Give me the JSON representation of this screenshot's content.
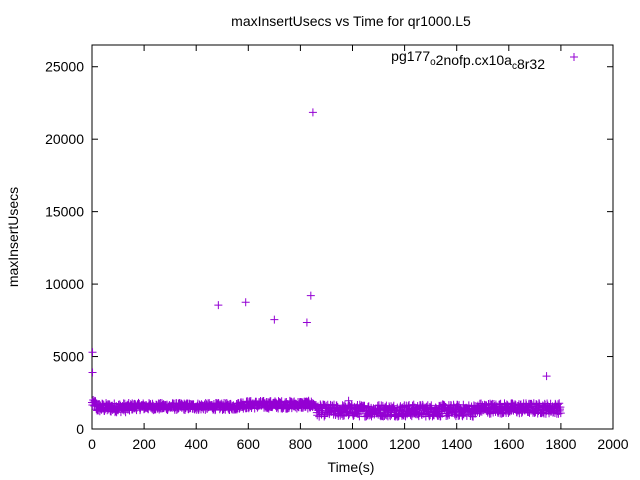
{
  "chart_data": {
    "type": "scatter",
    "title": "maxInsertUsecs vs Time for qr1000.L5",
    "xlabel": "Time(s)",
    "ylabel": "maxInsertUsecs",
    "xlim": [
      0,
      2000
    ],
    "ylim": [
      0,
      26500
    ],
    "xticks": [
      0,
      200,
      400,
      600,
      800,
      1000,
      1200,
      1400,
      1600,
      1800,
      2000
    ],
    "yticks": [
      0,
      5000,
      10000,
      15000,
      20000,
      25000
    ],
    "grid": false,
    "legend_position": "top-right",
    "series": [
      {
        "name": "pg177_o2nofp.cx10a_c8r32",
        "legend_parts": [
          {
            "text": "pg177",
            "sub": false
          },
          {
            "text": "o",
            "sub": true
          },
          {
            "text": "2nofp.cx10a",
            "sub": false
          },
          {
            "text": "c",
            "sub": true
          },
          {
            "text": "8r32",
            "sub": false
          }
        ],
        "color": "#9400d3",
        "marker": "plus",
        "outliers": [
          [
            2,
            5300
          ],
          [
            2,
            3900
          ],
          [
            485,
            8550
          ],
          [
            590,
            8750
          ],
          [
            700,
            7550
          ],
          [
            825,
            7350
          ],
          [
            840,
            9200
          ],
          [
            848,
            21850
          ],
          [
            985,
            1950
          ],
          [
            1745,
            3650
          ]
        ],
        "band_segments": [
          {
            "x_start": 0,
            "x_end": 15,
            "y_min": 1500,
            "y_max": 2000
          },
          {
            "x_start": 15,
            "x_end": 150,
            "y_min": 1150,
            "y_max": 1800
          },
          {
            "x_start": 150,
            "x_end": 560,
            "y_min": 1300,
            "y_max": 1800
          },
          {
            "x_start": 560,
            "x_end": 860,
            "y_min": 1400,
            "y_max": 1950
          },
          {
            "x_start": 860,
            "x_end": 1480,
            "y_min": 850,
            "y_max": 1700
          },
          {
            "x_start": 1480,
            "x_end": 1800,
            "y_min": 1050,
            "y_max": 1800
          }
        ],
        "band_step": 3
      }
    ]
  }
}
